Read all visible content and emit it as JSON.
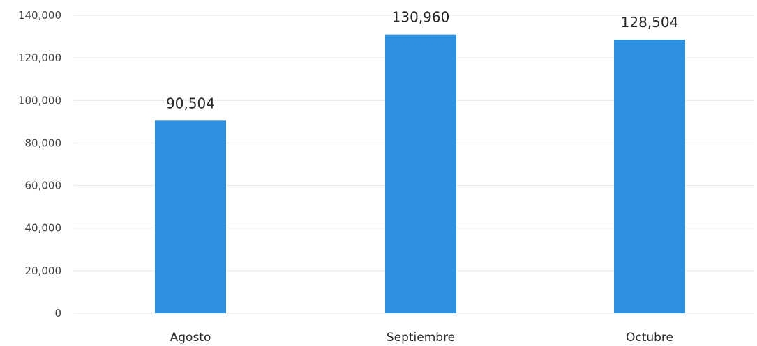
{
  "chart_data": {
    "type": "bar",
    "categories": [
      "Agosto",
      "Septiembre",
      "Octubre"
    ],
    "values": [
      90504,
      130960,
      128504
    ],
    "value_labels": [
      "90,504",
      "130,960",
      "128,504"
    ],
    "ylim": [
      0,
      140000
    ],
    "yticks": [
      0,
      20000,
      40000,
      60000,
      80000,
      100000,
      120000,
      140000
    ],
    "ytick_labels": [
      "0",
      "20,000",
      "40,000",
      "60,000",
      "80,000",
      "100,000",
      "120,000",
      "140,000"
    ],
    "title": "",
    "xlabel": "",
    "ylabel": "",
    "grid": true,
    "legend": "none",
    "bar_color": "#2e90e0",
    "grid_color": "#e6e6e6"
  }
}
